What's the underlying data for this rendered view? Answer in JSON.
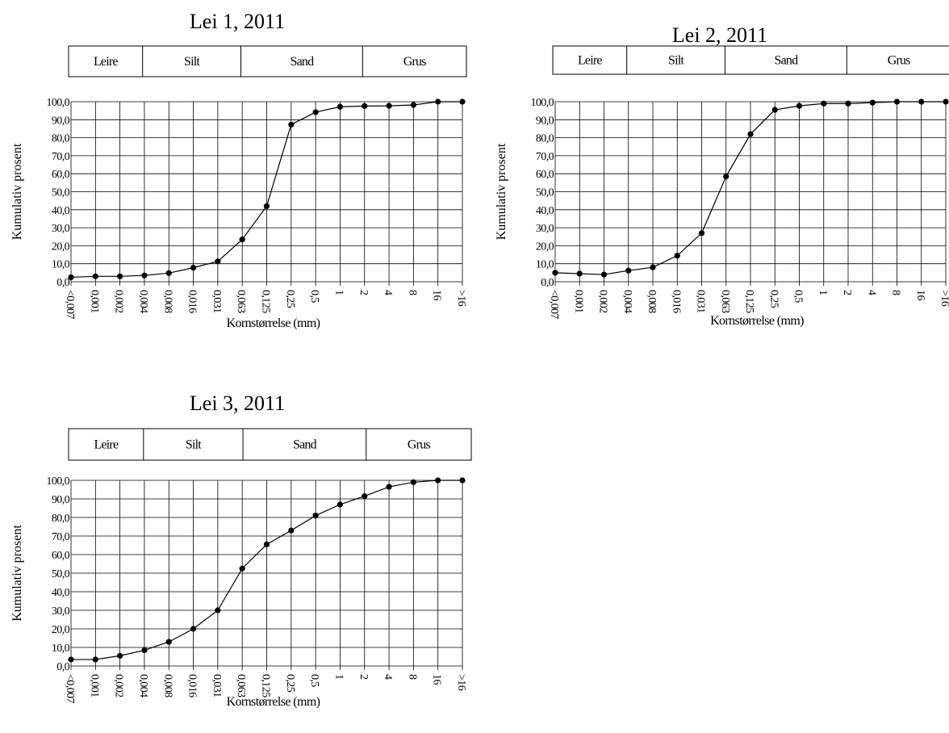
{
  "chart_data": [
    {
      "type": "line",
      "title": "Lei 1, 2011",
      "ylabel": "Kumulativ prosent",
      "xlabel": "Kornstørrelse (mm)",
      "size_classes": [
        "Leire",
        "Silt",
        "Sand",
        "Grus"
      ],
      "categories": [
        "<0,007",
        "0,001",
        "0,002",
        "0,004",
        "0,008",
        "0,016",
        "0,031",
        "0,063",
        "0,125",
        "0,25",
        "0,5",
        "1",
        "2",
        "4",
        "8",
        "16",
        ">16"
      ],
      "yticks": [
        "0,0",
        "10,0",
        "20,0",
        "30,0",
        "40,0",
        "50,0",
        "60,0",
        "70,0",
        "80,0",
        "90,0",
        "100,0"
      ],
      "ylim": [
        0,
        100
      ],
      "grid": true,
      "series": [
        {
          "values": [
            2.5,
            3.0,
            3.0,
            3.5,
            4.8,
            7.8,
            11.3,
            23.5,
            42.0,
            87.3,
            94.2,
            97.2,
            97.6,
            97.7,
            98.2,
            100.0,
            100.0
          ]
        }
      ]
    },
    {
      "type": "line",
      "title": "Lei 2, 2011",
      "ylabel": "Kumulativ prosent",
      "xlabel": "Kornstørrelse (mm)",
      "size_classes": [
        "Leire",
        "Silt",
        "Sand",
        "Grus"
      ],
      "categories": [
        "<0,007",
        "0,001",
        "0,002",
        "0,004",
        "0,008",
        "0,016",
        "0,031",
        "0,063",
        "0,125",
        "0,25",
        "0,5",
        "1",
        "2",
        "4",
        "8",
        "16",
        ">16"
      ],
      "yticks": [
        "0,0",
        "10,0",
        "20,0",
        "30,0",
        "40,0",
        "50,0",
        "60,0",
        "70,0",
        "80,0",
        "90,0",
        "100,0"
      ],
      "ylim": [
        0,
        100
      ],
      "grid": true,
      "series": [
        {
          "values": [
            5.0,
            4.5,
            4.0,
            6.2,
            8.0,
            14.5,
            27.0,
            58.5,
            82.0,
            95.5,
            97.7,
            99.0,
            99.0,
            99.5,
            100.0,
            100.0,
            100.0
          ]
        }
      ]
    },
    {
      "type": "line",
      "title": "Lei 3, 2011",
      "ylabel": "Kumulativ prosent",
      "xlabel": "Kornstørrelse (mm)",
      "size_classes": [
        "Leire",
        "Silt",
        "Sand",
        "Grus"
      ],
      "categories": [
        "<0,007",
        "0,001",
        "0,002",
        "0,004",
        "0,008",
        "0,016",
        "0,031",
        "0,063",
        "0,125",
        "0,25",
        "0,5",
        "1",
        "2",
        "4",
        "8",
        "16",
        ">16"
      ],
      "yticks": [
        "0,0",
        "10,0",
        "20,0",
        "30,0",
        "40,0",
        "50,0",
        "60,0",
        "70,0",
        "80,0",
        "90,0",
        "100,0"
      ],
      "ylim": [
        0,
        100
      ],
      "grid": true,
      "series": [
        {
          "values": [
            3.5,
            3.5,
            5.5,
            8.5,
            13.0,
            20.0,
            30.0,
            52.5,
            65.5,
            73.0,
            81.0,
            87.0,
            91.5,
            96.5,
            99.0,
            100.0,
            100.0
          ]
        }
      ]
    }
  ]
}
